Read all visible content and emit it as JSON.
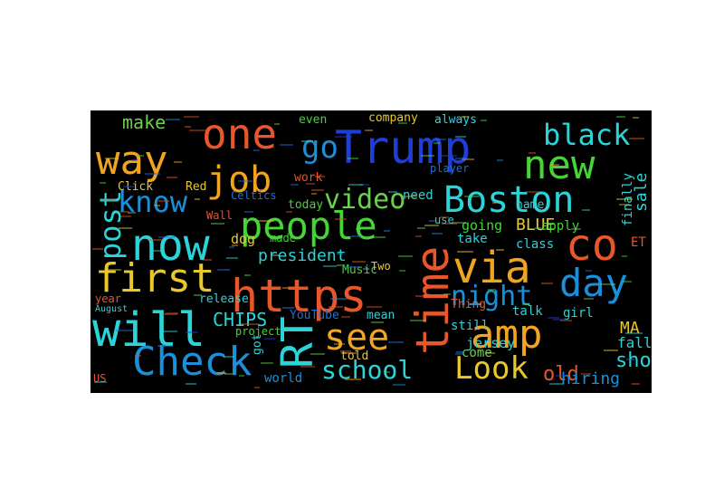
{
  "colors": {
    "background": "#000000",
    "page": "#ffffff",
    "palette": [
      "#e8562a",
      "#1f6fe0",
      "#2ad4d8",
      "#43d634",
      "#f0a420",
      "#1f3ed8",
      "#e8c82a",
      "#6bd04b",
      "#1b8fd8",
      "#d4531f"
    ]
  },
  "words": [
    {
      "text": "Trump",
      "color": "#1f3ed8"
    },
    {
      "text": "one",
      "color": "#e8562a"
    },
    {
      "text": "new",
      "color": "#43d634"
    },
    {
      "text": "way",
      "color": "#f0a420"
    },
    {
      "text": "job",
      "color": "#f0a420"
    },
    {
      "text": "black",
      "color": "#2ad4d8"
    },
    {
      "text": "go",
      "color": "#1b8fd8"
    },
    {
      "text": "video",
      "color": "#6bd04b"
    },
    {
      "text": "Boston",
      "color": "#2ad4d8"
    },
    {
      "text": "people",
      "color": "#43d634"
    },
    {
      "text": "know",
      "color": "#1b8fd8"
    },
    {
      "text": "now",
      "color": "#2ad4d8"
    },
    {
      "text": "post",
      "color": "#2ad4d8"
    },
    {
      "text": "co",
      "color": "#e8562a"
    },
    {
      "text": "via",
      "color": "#f0a420"
    },
    {
      "text": "first",
      "color": "#e8c82a"
    },
    {
      "text": "https",
      "color": "#e8562a"
    },
    {
      "text": "time",
      "color": "#e8562a"
    },
    {
      "text": "day",
      "color": "#1b8fd8"
    },
    {
      "text": "night",
      "color": "#1b8fd8"
    },
    {
      "text": "will",
      "color": "#2ad4d8"
    },
    {
      "text": "RT",
      "color": "#2ad4d8"
    },
    {
      "text": "amp",
      "color": "#f0a420"
    },
    {
      "text": "see",
      "color": "#f0a420"
    },
    {
      "text": "Check",
      "color": "#1b8fd8"
    },
    {
      "text": "school",
      "color": "#2ad4d8"
    },
    {
      "text": "Look",
      "color": "#e8c82a"
    },
    {
      "text": "show",
      "color": "#2ad4d8"
    },
    {
      "text": "president",
      "color": "#2ad4d8"
    },
    {
      "text": "make",
      "color": "#6bd04b"
    },
    {
      "text": "CHIPS",
      "color": "#2ad4d8"
    },
    {
      "text": "BLUE",
      "color": "#e8c82a"
    },
    {
      "text": "sale",
      "color": "#2ad4d8"
    },
    {
      "text": "company",
      "color": "#e8c82a"
    },
    {
      "text": "always",
      "color": "#2ad4d8"
    },
    {
      "text": "even",
      "color": "#43d634"
    },
    {
      "text": "Click",
      "color": "#e8c82a"
    },
    {
      "text": "Red",
      "color": "#e8c82a"
    },
    {
      "text": "Celtics",
      "color": "#1f6fe0"
    },
    {
      "text": "today",
      "color": "#43d634"
    },
    {
      "text": "need",
      "color": "#2ad4d8"
    },
    {
      "text": "use",
      "color": "#2ad4d8"
    },
    {
      "text": "going",
      "color": "#43d634"
    },
    {
      "text": "apply",
      "color": "#43d634"
    },
    {
      "text": "finally",
      "color": "#2ad4d8"
    },
    {
      "text": "name",
      "color": "#2ad4d8"
    },
    {
      "text": "player",
      "color": "#1f6fe0"
    },
    {
      "text": "work",
      "color": "#e8562a"
    },
    {
      "text": "Wall",
      "color": "#e8562a"
    },
    {
      "text": "dog",
      "color": "#e8c82a"
    },
    {
      "text": "made",
      "color": "#43d634"
    },
    {
      "text": "take",
      "color": "#2ad4d8"
    },
    {
      "text": "class",
      "color": "#2ad4d8"
    },
    {
      "text": "ET",
      "color": "#e8562a"
    },
    {
      "text": "Music",
      "color": "#43d634"
    },
    {
      "text": "Two",
      "color": "#e8c82a"
    },
    {
      "text": "release",
      "color": "#2ad4d8"
    },
    {
      "text": "year",
      "color": "#e8562a"
    },
    {
      "text": "girl",
      "color": "#2ad4d8"
    },
    {
      "text": "mean",
      "color": "#2ad4d8"
    },
    {
      "text": "Thing",
      "color": "#e8562a"
    },
    {
      "text": "talk",
      "color": "#2ad4d8"
    },
    {
      "text": "still",
      "color": "#2ad4d8"
    },
    {
      "text": "MA",
      "color": "#e8c82a"
    },
    {
      "text": "fall",
      "color": "#2ad4d8"
    },
    {
      "text": "YouTube",
      "color": "#1f6fe0"
    },
    {
      "text": "jersey",
      "color": "#2ad4d8"
    },
    {
      "text": "old",
      "color": "#e8562a"
    },
    {
      "text": "project",
      "color": "#43d634"
    },
    {
      "text": "got",
      "color": "#2ad4d8"
    },
    {
      "text": "come",
      "color": "#6bd04b"
    },
    {
      "text": "hiring",
      "color": "#1b8fd8"
    },
    {
      "text": "world",
      "color": "#1b8fd8"
    },
    {
      "text": "told",
      "color": "#e8c82a"
    },
    {
      "text": "US",
      "color": "#e8562a"
    },
    {
      "text": "August",
      "color": "#2ad4d8"
    }
  ]
}
